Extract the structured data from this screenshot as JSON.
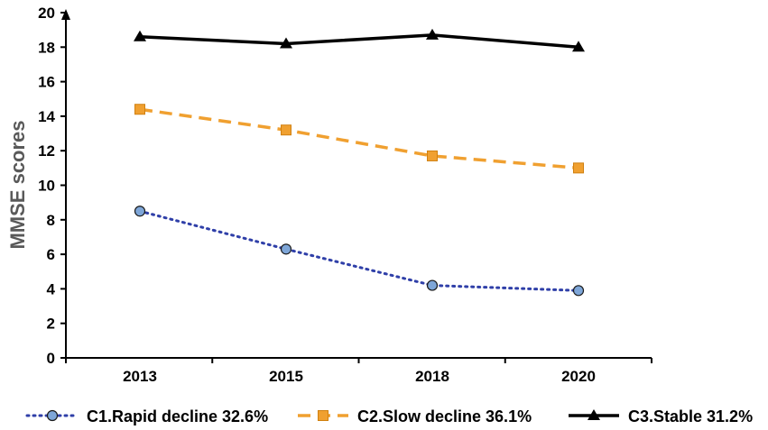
{
  "chart_data": {
    "type": "line",
    "title": "",
    "xlabel": "",
    "ylabel": "MMSE scores",
    "categories": [
      "2013",
      "2015",
      "2018",
      "2020"
    ],
    "ylim": [
      0,
      20
    ],
    "yticks": [
      0,
      2,
      4,
      6,
      8,
      10,
      12,
      14,
      16,
      18,
      20
    ],
    "grid": false,
    "legend_position": "bottom",
    "series": [
      {
        "name": "C1.Rapid decline 32.6%",
        "values": [
          8.5,
          6.3,
          4.2,
          3.9
        ],
        "color": "#2f3fa8",
        "line_style": "dotted",
        "marker": "circle",
        "marker_color": "#7ea6d8"
      },
      {
        "name": "C2.Slow decline 36.1%",
        "values": [
          14.4,
          13.2,
          11.7,
          11.0
        ],
        "color": "#f0a030",
        "line_style": "dashed",
        "marker": "square",
        "marker_color": "#f0a030"
      },
      {
        "name": "C3.Stable 31.2%",
        "values": [
          18.6,
          18.2,
          18.7,
          18.0
        ],
        "color": "#000000",
        "line_style": "solid",
        "marker": "triangle",
        "marker_color": "#000000"
      }
    ]
  }
}
